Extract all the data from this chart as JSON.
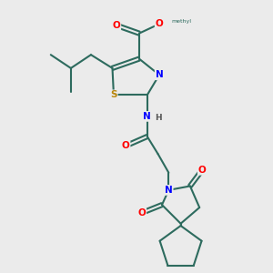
{
  "bg_color": "#ebebeb",
  "bond_color": "#2d6b5e",
  "bond_width": 1.5,
  "atom_colors": {
    "O": "#ff0000",
    "N": "#0000ff",
    "S": "#b8860b",
    "C": "#2d6b5e",
    "H": "#555555"
  },
  "font_size": 7.5,
  "fig_width": 3.0,
  "fig_height": 3.0,
  "dpi": 100,
  "xlim": [
    0,
    10
  ],
  "ylim": [
    0,
    10
  ]
}
